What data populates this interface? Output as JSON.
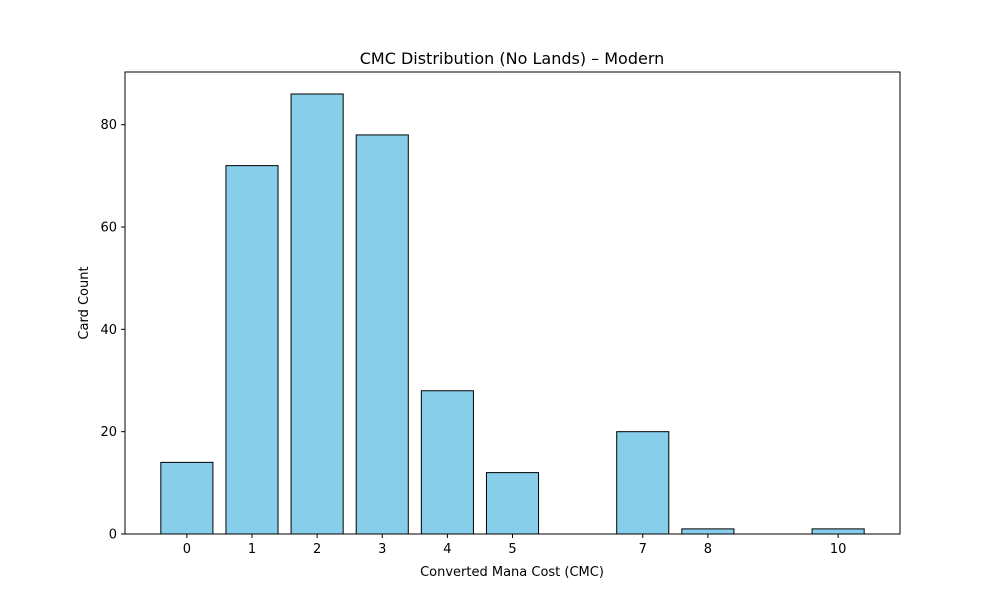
{
  "chart_data": {
    "type": "bar",
    "title": "CMC Distribution (No Lands) – Modern",
    "xlabel": "Converted Mana Cost (CMC)",
    "ylabel": "Card Count",
    "x": [
      0,
      1,
      2,
      3,
      4,
      5,
      7,
      8,
      10
    ],
    "values": [
      14,
      72,
      86,
      78,
      28,
      12,
      20,
      1,
      1
    ],
    "xlim": [
      -0.95,
      10.95
    ],
    "ylim": [
      0,
      90.3
    ],
    "yticks": [
      0,
      20,
      40,
      60,
      80
    ],
    "xticks": [
      0,
      1,
      2,
      3,
      4,
      5,
      7,
      8,
      10
    ],
    "bar_color": "#87CEEB",
    "edge_color": "#000000",
    "grid": false,
    "legend": "none"
  }
}
